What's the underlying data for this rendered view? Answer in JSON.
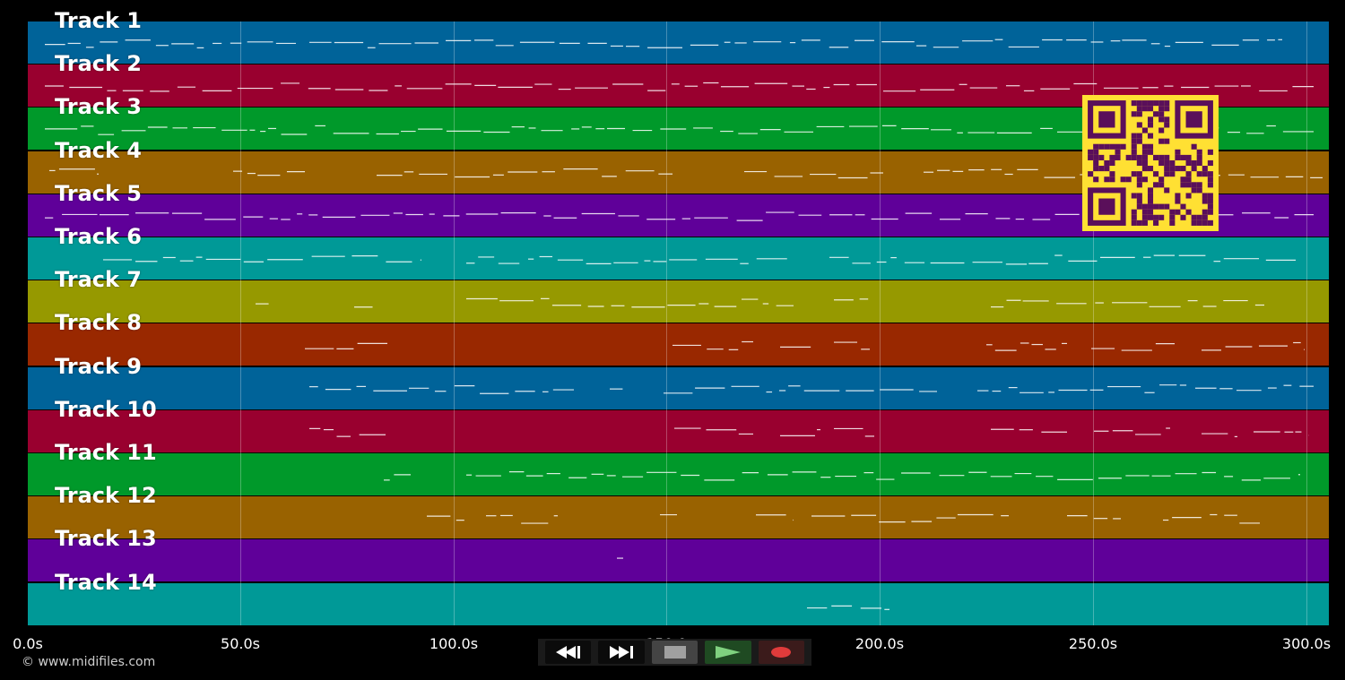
{
  "tracks": [
    {
      "label": "Track 1",
      "color": "#006399"
    },
    {
      "label": "Track 2",
      "color": "#99002F"
    },
    {
      "label": "Track 3",
      "color": "#00992A"
    },
    {
      "label": "Track 4",
      "color": "#996200"
    },
    {
      "label": "Track 5",
      "color": "#5F0099"
    },
    {
      "label": "Track 6",
      "color": "#009997"
    },
    {
      "label": "Track 7",
      "color": "#969900"
    },
    {
      "label": "Track 8",
      "color": "#992800"
    },
    {
      "label": "Track 9",
      "color": "#006399"
    },
    {
      "label": "Track 10",
      "color": "#99002F"
    },
    {
      "label": "Track 11",
      "color": "#00992A"
    },
    {
      "label": "Track 12",
      "color": "#996200"
    },
    {
      "label": "Track 13",
      "color": "#5F0099"
    },
    {
      "label": "Track 14",
      "color": "#009997"
    }
  ],
  "time_axis": {
    "ticks": [
      "0.0s",
      "50.0s",
      "100.0s",
      "200.0s",
      "250.0s",
      "300.0s"
    ],
    "hidden_tick": "150.0"
  },
  "copyright": "© www.midifiles.com",
  "controls": {
    "rewind_icon": "rewind-icon",
    "forward_icon": "fast-forward-icon",
    "stop_icon": "stop-icon",
    "play_icon": "play-icon",
    "record_icon": "record-icon"
  },
  "colors": {
    "qr_fg": "#5A0F5A",
    "qr_bg": "#FFE033",
    "background": "#000000"
  }
}
